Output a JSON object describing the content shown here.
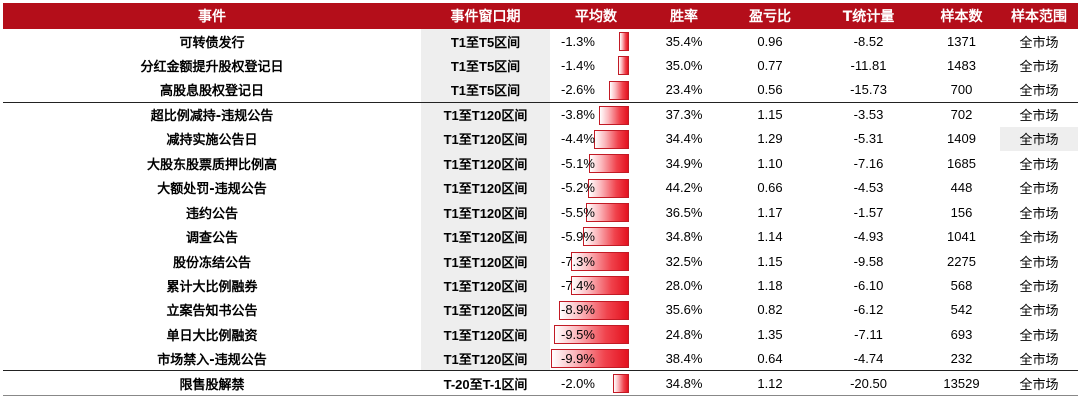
{
  "headers": [
    "事件",
    "事件窗口期",
    "平均数",
    "胜率",
    "盈亏比",
    "T统计量",
    "样本数",
    "样本范围"
  ],
  "rows": [
    {
      "event": "可转债发行",
      "window": "T1至T5区间",
      "avg": "-1.3%",
      "avg_value": -1.3,
      "win": "35.4%",
      "ratio": "0.96",
      "t": "-8.52",
      "n": "1371",
      "scope": "全市场"
    },
    {
      "event": "分红金额提升股权登记日",
      "window": "T1至T5区间",
      "avg": "-1.4%",
      "avg_value": -1.4,
      "win": "35.0%",
      "ratio": "0.77",
      "t": "-11.81",
      "n": "1483",
      "scope": "全市场"
    },
    {
      "event": "高股息股权登记日",
      "window": "T1至T5区间",
      "avg": "-2.6%",
      "avg_value": -2.6,
      "win": "23.4%",
      "ratio": "0.56",
      "t": "-15.73",
      "n": "700",
      "scope": "全市场"
    },
    {
      "event": "超比例减持-违规公告",
      "window": "T1至T120区间",
      "avg": "-3.8%",
      "avg_value": -3.8,
      "win": "37.3%",
      "ratio": "1.15",
      "t": "-3.53",
      "n": "702",
      "scope": "全市场"
    },
    {
      "event": "减持实施公告日",
      "window": "T1至T120区间",
      "avg": "-4.4%",
      "avg_value": -4.4,
      "win": "34.4%",
      "ratio": "1.29",
      "t": "-5.31",
      "n": "1409",
      "scope": "全市场"
    },
    {
      "event": "大股东股票质押比例高",
      "window": "T1至T120区间",
      "avg": "-5.1%",
      "avg_value": -5.1,
      "win": "34.9%",
      "ratio": "1.10",
      "t": "-7.16",
      "n": "1685",
      "scope": "全市场"
    },
    {
      "event": "大额处罚-违规公告",
      "window": "T1至T120区间",
      "avg": "-5.2%",
      "avg_value": -5.2,
      "win": "44.2%",
      "ratio": "0.66",
      "t": "-4.53",
      "n": "448",
      "scope": "全市场"
    },
    {
      "event": "违约公告",
      "window": "T1至T120区间",
      "avg": "-5.5%",
      "avg_value": -5.5,
      "win": "36.5%",
      "ratio": "1.17",
      "t": "-1.57",
      "n": "156",
      "scope": "全市场"
    },
    {
      "event": "调查公告",
      "window": "T1至T120区间",
      "avg": "-5.9%",
      "avg_value": -5.9,
      "win": "34.8%",
      "ratio": "1.14",
      "t": "-4.93",
      "n": "1041",
      "scope": "全市场"
    },
    {
      "event": "股份冻结公告",
      "window": "T1至T120区间",
      "avg": "-7.3%",
      "avg_value": -7.3,
      "win": "32.5%",
      "ratio": "1.15",
      "t": "-9.58",
      "n": "2275",
      "scope": "全市场"
    },
    {
      "event": "累计大比例融券",
      "window": "T1至T120区间",
      "avg": "-7.4%",
      "avg_value": -7.4,
      "win": "28.0%",
      "ratio": "1.18",
      "t": "-6.10",
      "n": "568",
      "scope": "全市场"
    },
    {
      "event": "立案告知书公告",
      "window": "T1至T120区间",
      "avg": "-8.9%",
      "avg_value": -8.9,
      "win": "35.6%",
      "ratio": "0.82",
      "t": "-6.12",
      "n": "542",
      "scope": "全市场"
    },
    {
      "event": "单日大比例融资",
      "window": "T1至T120区间",
      "avg": "-9.5%",
      "avg_value": -9.5,
      "win": "24.8%",
      "ratio": "1.35",
      "t": "-7.11",
      "n": "693",
      "scope": "全市场"
    },
    {
      "event": "市场禁入-违规公告",
      "window": "T1至T120区间",
      "avg": "-9.9%",
      "avg_value": -9.9,
      "win": "38.4%",
      "ratio": "0.64",
      "t": "-4.74",
      "n": "232",
      "scope": "全市场"
    },
    {
      "event": "限售股解禁",
      "window": "T-20至T-1区间",
      "avg": "-2.0%",
      "avg_value": -2.0,
      "win": "34.8%",
      "ratio": "1.12",
      "t": "-20.50",
      "n": "13529",
      "scope": "全市场"
    }
  ],
  "colors": {
    "header_bg": "#b40e1a",
    "bar_red": "#e3121f",
    "row_gray": "#eeeeee"
  }
}
